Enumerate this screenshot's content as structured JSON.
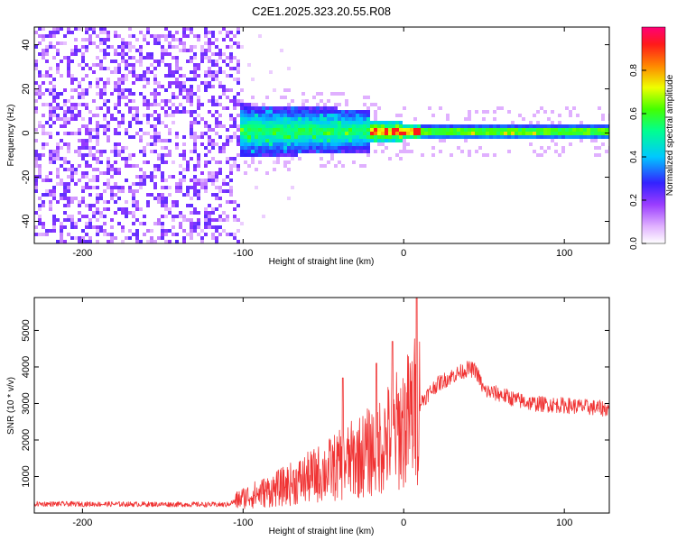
{
  "chart_data": [
    {
      "type": "heatmap",
      "title": "C2E1.2025.323.20.55.R08",
      "xlabel": "Height of straight line (km)",
      "ylabel": "Frequency (Hz)",
      "xlim": [
        -230,
        128
      ],
      "ylim": [
        -50,
        48
      ],
      "xticks": [
        -200,
        -100,
        0,
        100
      ],
      "yticks": [
        -40,
        -20,
        0,
        20,
        40
      ],
      "colorbar": {
        "label": "Normalized spectral amplitude",
        "range": [
          0,
          1
        ],
        "ticks": [
          0.0,
          0.2,
          0.4,
          0.6,
          0.8
        ]
      }
    },
    {
      "type": "line",
      "xlabel": "Height of straight line (km)",
      "ylabel": "SNR (10 * v/v)",
      "xlim": [
        -230,
        128
      ],
      "ylim": [
        0,
        5900
      ],
      "xticks": [
        -200,
        -100,
        0,
        100
      ],
      "yticks": [
        1000,
        2000,
        3000,
        4000,
        5000
      ],
      "series": [
        {
          "name": "SNR",
          "color": "#f03333",
          "envelope": [
            {
              "x": -230,
              "y": 250
            },
            {
              "x": -150,
              "y": 240
            },
            {
              "x": -110,
              "y": 230
            },
            {
              "x": -100,
              "y": 420
            },
            {
              "x": -80,
              "y": 650
            },
            {
              "x": -60,
              "y": 950
            },
            {
              "x": -40,
              "y": 1300
            },
            {
              "x": -20,
              "y": 1700
            },
            {
              "x": 0,
              "y": 2400
            },
            {
              "x": 10,
              "y": 3000
            },
            {
              "x": 20,
              "y": 3500
            },
            {
              "x": 30,
              "y": 3750
            },
            {
              "x": 40,
              "y": 3950
            },
            {
              "x": 45,
              "y": 3900
            },
            {
              "x": 50,
              "y": 3350
            },
            {
              "x": 60,
              "y": 3250
            },
            {
              "x": 70,
              "y": 3100
            },
            {
              "x": 80,
              "y": 3000
            },
            {
              "x": 100,
              "y": 2950
            },
            {
              "x": 128,
              "y": 2850
            }
          ],
          "peaks": [
            {
              "x": 8,
              "y": 5900
            },
            {
              "x": -7,
              "y": 4700
            },
            {
              "x": -17,
              "y": 4100
            },
            {
              "x": -38,
              "y": 3700
            }
          ]
        }
      ]
    }
  ]
}
